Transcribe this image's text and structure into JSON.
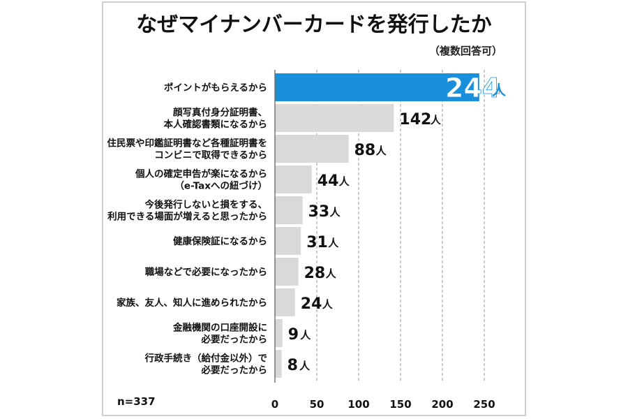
{
  "chart_data": {
    "type": "bar",
    "orientation": "horizontal",
    "title": "なぜマイナンバーカードを発行したか",
    "subtitle": "（複数回答可）",
    "note": "n=337",
    "unit": "人",
    "categories": [
      [
        "ポイントがもらえるから"
      ],
      [
        "顔写真付身分証明書、",
        "本人確認書類になるから"
      ],
      [
        "住民票や印鑑証明書など各種証明書を",
        "コンビニで取得できるから"
      ],
      [
        "個人の確定申告が楽になるから",
        "（e-Taxへの紐づけ）"
      ],
      [
        "今後発行しないと損をする、",
        "利用できる場面が増えると思ったから"
      ],
      [
        "健康保険証になるから"
      ],
      [
        "職場などで必要になったから"
      ],
      [
        "家族、友人、知人に進められたから"
      ],
      [
        "金融機関の口座開設に",
        "必要だったから"
      ],
      [
        "行政手続き（給付金以外）で",
        "必要だったから"
      ]
    ],
    "values": [
      244,
      142,
      88,
      44,
      33,
      31,
      28,
      24,
      9,
      8
    ],
    "xlim": [
      0,
      250
    ],
    "xticks": [
      "0",
      "50",
      "100",
      "150",
      "200",
      "250"
    ],
    "grid": true,
    "colors": {
      "highlight": "#1a90dc",
      "bar": "#d9d9d9",
      "grid": "#9a9a9a"
    }
  }
}
